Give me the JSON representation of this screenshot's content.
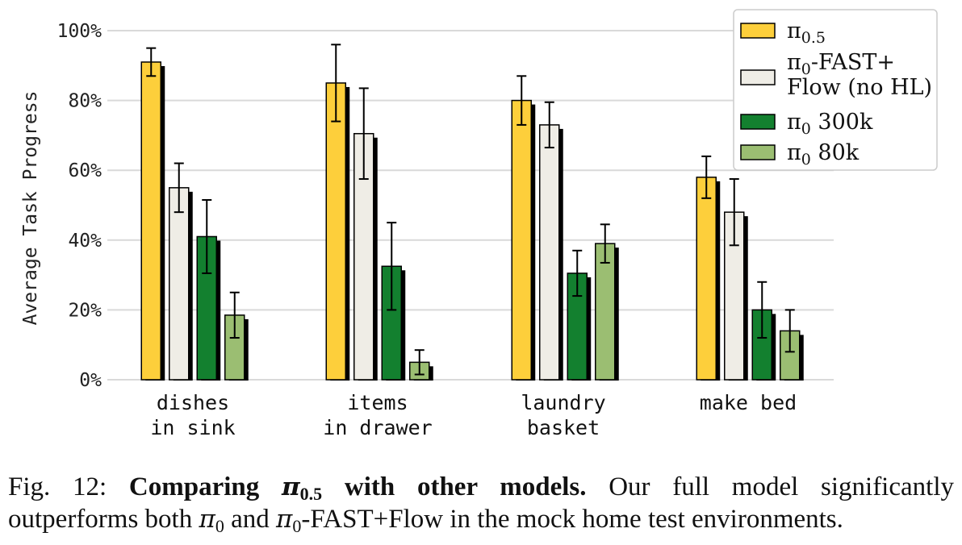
{
  "chart_data": {
    "type": "bar",
    "ylabel": "Average Task Progress",
    "ylim": [
      0,
      100
    ],
    "yticks": [
      "0%",
      "20%",
      "40%",
      "60%",
      "80%",
      "100%"
    ],
    "categories": [
      [
        "dishes",
        "in sink"
      ],
      [
        "items",
        "in drawer"
      ],
      [
        "laundry",
        "basket"
      ],
      [
        "make bed"
      ]
    ],
    "series": [
      {
        "name": "π",
        "sub": "0.5",
        "color": "#FDCF3B",
        "values": [
          91,
          85,
          80,
          58
        ],
        "err": [
          4,
          11,
          7,
          6
        ]
      },
      {
        "name": "π",
        "sub": "0",
        "name_suffix": "-FAST+",
        "name_line2": "Flow (no HL)",
        "color": "#EFEDE6",
        "values": [
          55,
          70.5,
          73,
          48
        ],
        "err": [
          7,
          13,
          6.5,
          9.5
        ]
      },
      {
        "name": "π",
        "sub": "0",
        "name_suffix": " 300k",
        "color": "#13802F",
        "values": [
          41,
          32.5,
          30.5,
          20
        ],
        "err": [
          10.5,
          12.5,
          6.5,
          8
        ]
      },
      {
        "name": "π",
        "sub": "0",
        "name_suffix": " 80k",
        "color": "#9BBE72",
        "values": [
          18.5,
          5,
          39,
          14
        ],
        "err": [
          6.5,
          3.5,
          5.5,
          6
        ]
      }
    ],
    "grid": true,
    "legend_position": "top-right"
  },
  "caption": {
    "prefix": "Fig. 12: ",
    "bold_start": "Comparing ",
    "bold_pi": "π",
    "bold_pi_sub": "0.5",
    "bold_end": " with other models.",
    "text1": " Our full model significantly",
    "text2_a": "outperforms both ",
    "pi1": "π",
    "pi1_sub": "0",
    "text2_b": " and ",
    "pi2": "π",
    "pi2_sub": "0",
    "text2_c": "-FAST+Flow in the mock home test environments."
  }
}
